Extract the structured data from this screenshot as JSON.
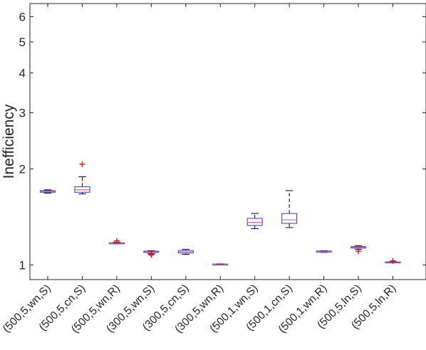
{
  "chart_data": {
    "type": "box",
    "title": "",
    "xlabel": "",
    "ylabel": "Inefficiency",
    "yscale": "log",
    "ylim": [
      0.9,
      6.6
    ],
    "yticks": [
      1,
      2,
      3,
      4,
      5,
      6
    ],
    "ytick_labels": [
      "1",
      "2",
      "3",
      "4",
      "5",
      "6"
    ],
    "categories": [
      "(500,5,wn,S)",
      "(500,5,cn,S)",
      "(500,5,wn,R)",
      "(300,5,wn,S)",
      "(300,5,cn,S)",
      "(300,5,wn,R)",
      "(500,1,wn,S)",
      "(500,1,cn,S)",
      "(500,1,wn,R)",
      "(500,5,ln,S)",
      "(500,5,ln,R)"
    ],
    "boxes": [
      {
        "whisker_low": 1.68,
        "q1": 1.69,
        "median": 1.7,
        "q3": 1.71,
        "whisker_high": 1.72,
        "outliers": []
      },
      {
        "whisker_low": 1.67,
        "q1": 1.69,
        "median": 1.72,
        "q3": 1.76,
        "whisker_high": 1.89,
        "outliers": [
          2.07
        ]
      },
      {
        "whisker_low": 1.165,
        "q1": 1.168,
        "median": 1.171,
        "q3": 1.174,
        "whisker_high": 1.178,
        "outliers": [
          1.19
        ]
      },
      {
        "whisker_low": 1.085,
        "q1": 1.095,
        "median": 1.1,
        "q3": 1.105,
        "whisker_high": 1.108,
        "outliers": [
          1.08,
          1.075
        ]
      },
      {
        "whisker_low": 1.08,
        "q1": 1.09,
        "median": 1.1,
        "q3": 1.11,
        "whisker_high": 1.12,
        "outliers": []
      },
      {
        "whisker_low": 1.005,
        "q1": 1.006,
        "median": 1.007,
        "q3": 1.008,
        "whisker_high": 1.009,
        "outliers": []
      },
      {
        "whisker_low": 1.3,
        "q1": 1.33,
        "median": 1.36,
        "q3": 1.4,
        "whisker_high": 1.45,
        "outliers": []
      },
      {
        "whisker_low": 1.31,
        "q1": 1.35,
        "median": 1.385,
        "q3": 1.45,
        "whisker_high": 1.71,
        "outliers": []
      },
      {
        "whisker_low": 1.095,
        "q1": 1.097,
        "median": 1.1,
        "q3": 1.106,
        "whisker_high": 1.108,
        "outliers": []
      },
      {
        "whisker_low": 1.12,
        "q1": 1.13,
        "median": 1.137,
        "q3": 1.142,
        "whisker_high": 1.15,
        "outliers": [
          1.105
        ]
      },
      {
        "whisker_low": 1.018,
        "q1": 1.02,
        "median": 1.021,
        "q3": 1.023,
        "whisker_high": 1.025,
        "outliers": [
          1.03
        ]
      }
    ],
    "colors": {
      "box": "#3333ee",
      "median": "#ee6666",
      "whisker": "#000000",
      "outlier": "#ff0000",
      "axis": "#262626"
    },
    "grid": false,
    "legend": "none"
  }
}
